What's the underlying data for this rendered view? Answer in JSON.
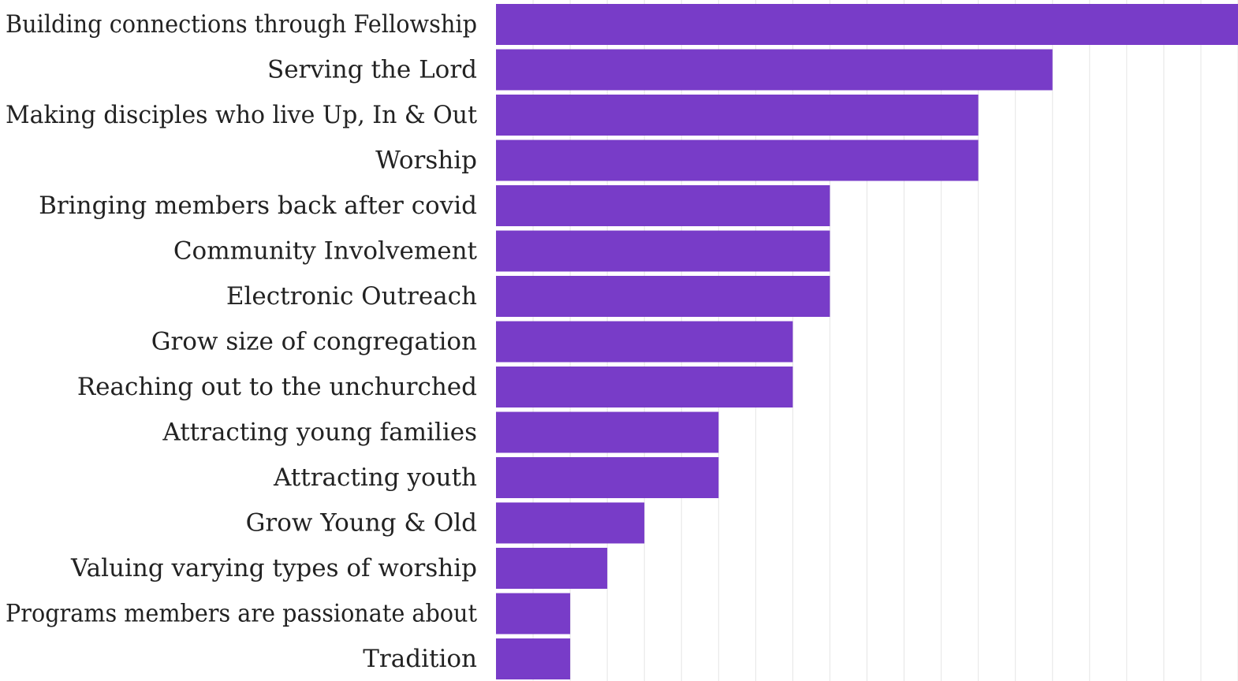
{
  "chart_data": {
    "type": "bar",
    "orientation": "horizontal",
    "title": "",
    "xlabel": "",
    "ylabel": "",
    "categories": [
      "Building connections through Fellowship",
      "Serving the Lord",
      "Making disciples who live Up, In & Out",
      "Worship",
      "Bringing members back after covid",
      "Community Involvement",
      "Electronic Outreach",
      "Grow size of congregation",
      "Reaching out to the unchurched",
      "Attracting young families",
      "Attracting youth",
      "Grow Young & Old",
      "Valuing varying types of worship",
      "Programs members are passionate about",
      "Tradition"
    ],
    "values": [
      20,
      15,
      13,
      13,
      9,
      9,
      9,
      8,
      8,
      6,
      6,
      4,
      3,
      2,
      2
    ],
    "xlim": [
      0,
      20
    ],
    "grid": true,
    "bar_color": "#783cc8",
    "gridline_color": "#e5e5e5"
  }
}
